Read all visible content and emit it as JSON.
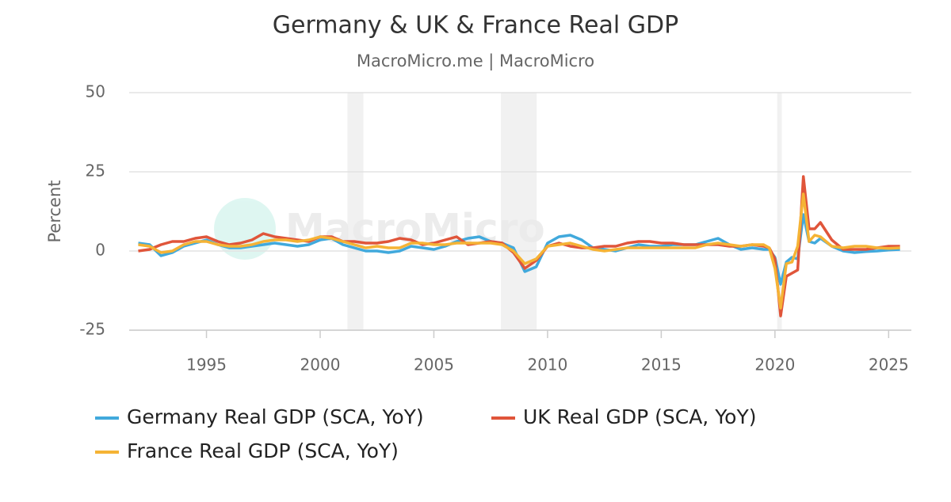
{
  "chart_data": {
    "type": "line",
    "title": "Germany & UK & France Real GDP",
    "subtitle": "MacroMicro.me | MacroMicro",
    "watermark": "MacroMicro",
    "ylabel": "Percent",
    "xlim": [
      1991.6,
      2026
    ],
    "ylim": [
      -25,
      50
    ],
    "xticks": [
      1995,
      2000,
      2005,
      2010,
      2015,
      2020,
      2025
    ],
    "yticks": [
      -25,
      0,
      25,
      50
    ],
    "grid": true,
    "legend": "bottom",
    "recessions": [
      [
        2001.2,
        2001.9
      ],
      [
        2007.95,
        2009.52
      ],
      [
        2020.1,
        2020.3
      ]
    ],
    "x": [
      1992,
      1992.5,
      1993,
      1993.5,
      1994,
      1994.5,
      1995,
      1995.5,
      1996,
      1996.5,
      1997,
      1997.5,
      1998,
      1998.5,
      1999,
      1999.5,
      2000,
      2000.5,
      2001,
      2001.5,
      2002,
      2002.5,
      2003,
      2003.5,
      2004,
      2004.5,
      2005,
      2005.5,
      2006,
      2006.5,
      2007,
      2007.5,
      2008,
      2008.5,
      2009,
      2009.5,
      2010,
      2010.5,
      2011,
      2011.5,
      2012,
      2012.5,
      2013,
      2013.5,
      2014,
      2014.5,
      2015,
      2015.5,
      2016,
      2016.5,
      2017,
      2017.5,
      2018,
      2018.5,
      2019,
      2019.5,
      2019.75,
      2020,
      2020.25,
      2020.5,
      2020.75,
      2021,
      2021.25,
      2021.5,
      2021.75,
      2022,
      2022.5,
      2023,
      2023.5,
      2024,
      2024.5,
      2025,
      2025.5
    ],
    "series": [
      {
        "name": "Germany Real GDP (SCA, YoY)",
        "color": "#41a9dc",
        "values": [
          2.5,
          2.0,
          -1.5,
          -0.5,
          1.5,
          2.5,
          3.5,
          2.0,
          1.0,
          1.0,
          1.5,
          2.0,
          2.5,
          2.0,
          1.5,
          2.0,
          3.5,
          4.0,
          2.0,
          1.0,
          0.0,
          0.0,
          -0.5,
          0.0,
          1.5,
          1.0,
          0.5,
          1.5,
          3.0,
          4.0,
          4.5,
          3.0,
          2.5,
          1.0,
          -6.5,
          -5.0,
          2.5,
          4.5,
          5.0,
          3.5,
          1.0,
          0.5,
          0.0,
          1.0,
          2.0,
          1.5,
          1.5,
          2.0,
          2.0,
          2.0,
          3.0,
          4.0,
          2.0,
          0.5,
          1.0,
          0.5,
          0.5,
          -2.0,
          -10.5,
          -3.5,
          -2.0,
          -2.5,
          11.5,
          3.0,
          2.5,
          4.0,
          1.5,
          0.0,
          -0.5,
          -0.2,
          0.0,
          0.3,
          0.5
        ]
      },
      {
        "name": "UK Real GDP (SCA, YoY)",
        "color": "#e0553a",
        "values": [
          0,
          0.5,
          2.0,
          3.0,
          3.0,
          4.0,
          4.5,
          3.0,
          2.0,
          2.5,
          3.5,
          5.5,
          4.5,
          4.0,
          3.5,
          3.0,
          4.5,
          4.5,
          3.0,
          3.0,
          2.5,
          2.5,
          3.0,
          4.0,
          3.5,
          2.0,
          2.5,
          3.5,
          4.5,
          2.0,
          2.5,
          3.0,
          2.5,
          -0.5,
          -5.5,
          -3.0,
          1.5,
          2.5,
          1.5,
          1.0,
          1.0,
          1.5,
          1.5,
          2.5,
          3.0,
          3.0,
          2.5,
          2.5,
          2.0,
          2.0,
          2.0,
          2.0,
          1.5,
          1.5,
          2.0,
          1.5,
          1.0,
          -2.5,
          -20.5,
          -8.0,
          -7.0,
          -6.0,
          23.5,
          7.0,
          7.0,
          9.0,
          3.5,
          0.5,
          0.5,
          0.5,
          1.0,
          1.5,
          1.5
        ]
      },
      {
        "name": "France Real GDP (SCA, YoY)",
        "color": "#f5b335",
        "values": [
          2.0,
          1.5,
          -0.5,
          0.0,
          2.0,
          3.0,
          3.0,
          2.0,
          1.5,
          1.5,
          2.0,
          3.0,
          3.5,
          3.5,
          3.0,
          3.5,
          4.5,
          4.0,
          3.0,
          2.0,
          1.0,
          1.5,
          1.0,
          1.0,
          2.5,
          2.5,
          2.0,
          2.0,
          2.5,
          2.5,
          2.5,
          2.5,
          2.0,
          0.0,
          -4.0,
          -2.5,
          1.5,
          2.0,
          2.5,
          1.5,
          0.5,
          0.0,
          0.5,
          1.0,
          1.0,
          1.0,
          1.0,
          1.0,
          1.0,
          1.0,
          2.0,
          2.5,
          2.0,
          1.5,
          2.0,
          2.0,
          1.0,
          -5.5,
          -18.0,
          -4.0,
          -3.5,
          1.5,
          18.0,
          3.0,
          5.0,
          4.5,
          1.5,
          1.0,
          1.5,
          1.5,
          1.0,
          0.8,
          1.0
        ]
      }
    ]
  }
}
